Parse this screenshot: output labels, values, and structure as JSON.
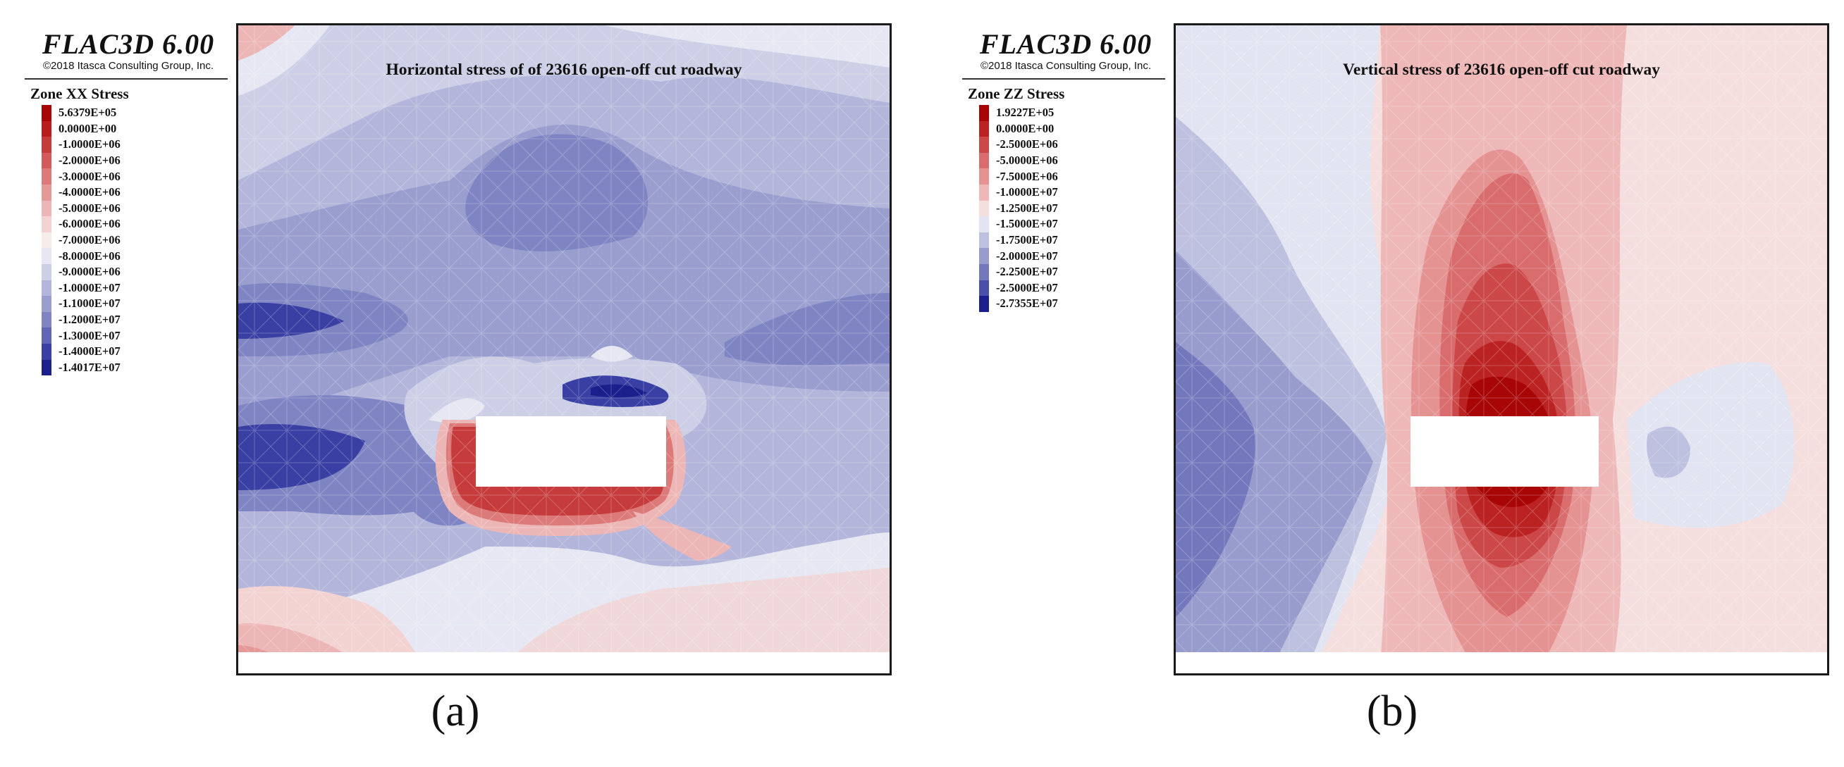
{
  "panels": [
    {
      "logo_title": "FLAC3D 6.00",
      "logo_copyright": "©2018 Itasca Consulting Group, Inc.",
      "legend_title": "Zone XX Stress",
      "legend": [
        {
          "label": "5.6379E+05",
          "color": "#a80606"
        },
        {
          "label": "0.0000E+00",
          "color": "#b81c1c"
        },
        {
          "label": "-1.0000E+06",
          "color": "#c63c3c"
        },
        {
          "label": "-2.0000E+06",
          "color": "#d25a5a"
        },
        {
          "label": "-3.0000E+06",
          "color": "#dc7a7a"
        },
        {
          "label": "-4.0000E+06",
          "color": "#e59898"
        },
        {
          "label": "-5.0000E+06",
          "color": "#edb6b6"
        },
        {
          "label": "-6.0000E+06",
          "color": "#f3d2d2"
        },
        {
          "label": "-7.0000E+06",
          "color": "#f6ecec"
        },
        {
          "label": "-8.0000E+06",
          "color": "#e6e7f2"
        },
        {
          "label": "-9.0000E+06",
          "color": "#cccfe6"
        },
        {
          "label": "-1.0000E+07",
          "color": "#b3b6da"
        },
        {
          "label": "-1.1000E+07",
          "color": "#9a9ecf"
        },
        {
          "label": "-1.2000E+07",
          "color": "#7f85c3"
        },
        {
          "label": "-1.3000E+07",
          "color": "#6066b5"
        },
        {
          "label": "-1.4000E+07",
          "color": "#3a40a3"
        },
        {
          "label": "-1.4017E+07",
          "color": "#1a1f8c"
        }
      ],
      "title": "Horizontal stress of of 23616 open-off cut roadway",
      "caption": "(a)"
    },
    {
      "logo_title": "FLAC3D 6.00",
      "logo_copyright": "©2018 Itasca Consulting Group, Inc.",
      "legend_title": "Zone ZZ Stress",
      "legend": [
        {
          "label": "1.9227E+05",
          "color": "#a80606"
        },
        {
          "label": "0.0000E+00",
          "color": "#bb2222"
        },
        {
          "label": "-2.5000E+06",
          "color": "#cc4848"
        },
        {
          "label": "-5.0000E+06",
          "color": "#d96c6c"
        },
        {
          "label": "-7.5000E+06",
          "color": "#e49292"
        },
        {
          "label": "-1.0000E+07",
          "color": "#eeb8b8"
        },
        {
          "label": "-1.2500E+07",
          "color": "#f5dede"
        },
        {
          "label": "-1.5000E+07",
          "color": "#e2e4f1"
        },
        {
          "label": "-1.7500E+07",
          "color": "#bdc0df"
        },
        {
          "label": "-2.0000E+07",
          "color": "#989ccd"
        },
        {
          "label": "-2.2500E+07",
          "color": "#7378bc"
        },
        {
          "label": "-2.5000E+07",
          "color": "#4a50a8"
        },
        {
          "label": "-2.7355E+07",
          "color": "#1a1f8c"
        }
      ],
      "title": "Vertical stress of 23616 open-off cut roadway",
      "caption": "(b)"
    }
  ]
}
